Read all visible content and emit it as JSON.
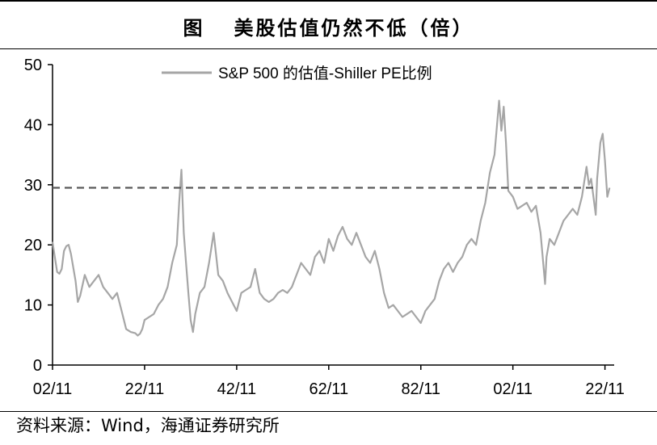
{
  "title": {
    "figure_label": "图",
    "text": "美股估值仍然不低（倍）"
  },
  "source": "资料来源：Wind，海通证券研究所",
  "colors": {
    "series": "#a6a6a6",
    "reference_line": "#595959",
    "axis": "#000000"
  },
  "chart_data": {
    "type": "line",
    "title": "美股估值仍然不低（倍）",
    "xlabel": "",
    "ylabel": "",
    "ylim": [
      0,
      50
    ],
    "yticks": [
      0,
      10,
      20,
      30,
      40,
      50
    ],
    "xlim": [
      1902,
      2024
    ],
    "xticks": [
      {
        "value": 1902,
        "label": "02/11"
      },
      {
        "value": 1922,
        "label": "22/11"
      },
      {
        "value": 1942,
        "label": "42/11"
      },
      {
        "value": 1962,
        "label": "62/11"
      },
      {
        "value": 1982,
        "label": "82/11"
      },
      {
        "value": 2002,
        "label": "02/11"
      },
      {
        "value": 2022,
        "label": "22/11"
      }
    ],
    "legend": {
      "position": "top-center",
      "label": "S&P 500 的估值-Shiller PE比例"
    },
    "reference_line": {
      "value": 29.5,
      "style": "dashed"
    },
    "series": [
      {
        "name": "S&P 500 的估值-Shiller PE比例",
        "x": [
          1902,
          1902.5,
          1903,
          1903.5,
          1904,
          1904.5,
          1905,
          1905.5,
          1906,
          1907,
          1907.5,
          1908,
          1909,
          1909.5,
          1910,
          1911,
          1912,
          1913,
          1914,
          1915,
          1916,
          1917,
          1917.5,
          1918,
          1919,
          1920,
          1920.5,
          1921,
          1921.5,
          1922,
          1923,
          1924,
          1925,
          1926,
          1927,
          1928,
          1929,
          1929.5,
          1930,
          1930.5,
          1931,
          1931.5,
          1932,
          1932.5,
          1933,
          1934,
          1935,
          1936,
          1937,
          1938,
          1939,
          1940,
          1941,
          1942,
          1943,
          1944,
          1945,
          1946,
          1947,
          1948,
          1949,
          1950,
          1951,
          1952,
          1953,
          1954,
          1955,
          1956,
          1957,
          1958,
          1959,
          1960,
          1961,
          1962,
          1963,
          1964,
          1965,
          1966,
          1967,
          1968,
          1969,
          1970,
          1971,
          1972,
          1973,
          1974,
          1975,
          1976,
          1977,
          1978,
          1979,
          1980,
          1981,
          1982,
          1983,
          1984,
          1985,
          1986,
          1987,
          1988,
          1989,
          1990,
          1991,
          1992,
          1993,
          1994,
          1995,
          1996,
          1997,
          1998,
          1999,
          1999.5,
          2000,
          2000.5,
          2001,
          2002,
          2003,
          2004,
          2005,
          2006,
          2007,
          2008,
          2009,
          2009.3,
          2010,
          2011,
          2012,
          2013,
          2014,
          2015,
          2016,
          2017,
          2018,
          2018.5,
          2019,
          2020,
          2020.3,
          2021,
          2021.5,
          2022,
          2022.5,
          2023
        ],
        "values": [
          20.5,
          18,
          15.5,
          15.2,
          16,
          19,
          19.8,
          20,
          18.5,
          14,
          10.5,
          11.5,
          15,
          14,
          13,
          14,
          15,
          13,
          12,
          11,
          12,
          9,
          7.5,
          6,
          5.5,
          5.3,
          4.9,
          5.2,
          6,
          7.5,
          8,
          8.5,
          10,
          11,
          13,
          17,
          20,
          27,
          32.5,
          22,
          17,
          12,
          7.5,
          5.5,
          8.5,
          12,
          13,
          17,
          22,
          15,
          14,
          12,
          10.5,
          9,
          12,
          12.5,
          13,
          16,
          12,
          11,
          10.5,
          11,
          12,
          12.5,
          12,
          13,
          15,
          17,
          16,
          15,
          18,
          19,
          17,
          21,
          19,
          21.5,
          23,
          21,
          20,
          22,
          20,
          18,
          17,
          19,
          16,
          12,
          9.5,
          10,
          9,
          8,
          8.5,
          9,
          8,
          7,
          9,
          10,
          11,
          14,
          16,
          17,
          15.5,
          17,
          18,
          20,
          21,
          20,
          24,
          27,
          32,
          35,
          44,
          39,
          43,
          37,
          29,
          28,
          26,
          26.5,
          27,
          25.5,
          26.5,
          22,
          13.5,
          18,
          21,
          20,
          22,
          24,
          25,
          26,
          25,
          28,
          33,
          30,
          31,
          25,
          31,
          37,
          38.5,
          34,
          28,
          29.5
        ]
      }
    ]
  }
}
